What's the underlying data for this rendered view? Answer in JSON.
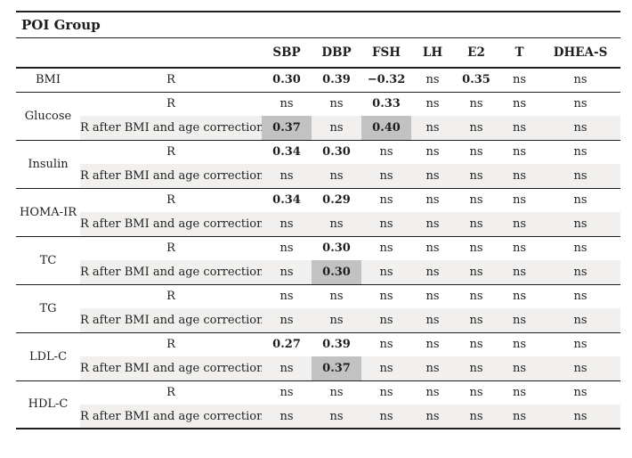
{
  "table": {
    "title": "POI Group",
    "columns": [
      "SBP",
      "DBP",
      "FSH",
      "LH",
      "E2",
      "T",
      "DHEA-S"
    ],
    "groups": [
      {
        "param": "BMI",
        "rows": [
          {
            "label": "R",
            "striped": false,
            "cells": [
              {
                "v": "0.30",
                "bold": true
              },
              {
                "v": "0.39",
                "bold": true
              },
              {
                "v": "−0.32",
                "bold": true
              },
              {
                "v": "ns"
              },
              {
                "v": "0.35",
                "bold": true
              },
              {
                "v": "ns"
              },
              {
                "v": "ns"
              }
            ]
          }
        ]
      },
      {
        "param": "Glucose",
        "rows": [
          {
            "label": "R",
            "striped": false,
            "cells": [
              {
                "v": "ns"
              },
              {
                "v": "ns"
              },
              {
                "v": "0.33",
                "bold": true
              },
              {
                "v": "ns"
              },
              {
                "v": "ns"
              },
              {
                "v": "ns"
              },
              {
                "v": "ns"
              }
            ]
          },
          {
            "label": "R after BMI and age correction",
            "striped": true,
            "cells": [
              {
                "v": "0.37",
                "bold": true,
                "highlight": true
              },
              {
                "v": "ns"
              },
              {
                "v": "0.40",
                "bold": true,
                "highlight": true
              },
              {
                "v": "ns"
              },
              {
                "v": "ns"
              },
              {
                "v": "ns"
              },
              {
                "v": "ns"
              }
            ]
          }
        ]
      },
      {
        "param": "Insulin",
        "rows": [
          {
            "label": "R",
            "striped": false,
            "cells": [
              {
                "v": "0.34",
                "bold": true
              },
              {
                "v": "0.30",
                "bold": true
              },
              {
                "v": "ns"
              },
              {
                "v": "ns"
              },
              {
                "v": "ns"
              },
              {
                "v": "ns"
              },
              {
                "v": "ns"
              }
            ]
          },
          {
            "label": "R after BMI and age correction",
            "striped": true,
            "cells": [
              {
                "v": "ns"
              },
              {
                "v": "ns"
              },
              {
                "v": "ns"
              },
              {
                "v": "ns"
              },
              {
                "v": "ns"
              },
              {
                "v": "ns"
              },
              {
                "v": "ns"
              }
            ]
          }
        ]
      },
      {
        "param": "HOMA-IR",
        "rows": [
          {
            "label": "R",
            "striped": false,
            "cells": [
              {
                "v": "0.34",
                "bold": true
              },
              {
                "v": "0.29",
                "bold": true
              },
              {
                "v": "ns"
              },
              {
                "v": "ns"
              },
              {
                "v": "ns"
              },
              {
                "v": "ns"
              },
              {
                "v": "ns"
              }
            ]
          },
          {
            "label": "R after BMI and age correction",
            "striped": true,
            "cells": [
              {
                "v": "ns"
              },
              {
                "v": "ns"
              },
              {
                "v": "ns"
              },
              {
                "v": "ns"
              },
              {
                "v": "ns"
              },
              {
                "v": "ns"
              },
              {
                "v": "ns"
              }
            ]
          }
        ]
      },
      {
        "param": "TC",
        "rows": [
          {
            "label": "R",
            "striped": false,
            "cells": [
              {
                "v": "ns"
              },
              {
                "v": "0.30",
                "bold": true
              },
              {
                "v": "ns"
              },
              {
                "v": "ns"
              },
              {
                "v": "ns"
              },
              {
                "v": "ns"
              },
              {
                "v": "ns"
              }
            ]
          },
          {
            "label": "R after BMI and age correction",
            "striped": true,
            "cells": [
              {
                "v": "ns"
              },
              {
                "v": "0.30",
                "bold": true,
                "highlight": true
              },
              {
                "v": "ns"
              },
              {
                "v": "ns"
              },
              {
                "v": "ns"
              },
              {
                "v": "ns"
              },
              {
                "v": "ns"
              }
            ]
          }
        ]
      },
      {
        "param": "TG",
        "rows": [
          {
            "label": "R",
            "striped": false,
            "cells": [
              {
                "v": "ns"
              },
              {
                "v": "ns"
              },
              {
                "v": "ns"
              },
              {
                "v": "ns"
              },
              {
                "v": "ns"
              },
              {
                "v": "ns"
              },
              {
                "v": "ns"
              }
            ]
          },
          {
            "label": "R after BMI and age correction",
            "striped": true,
            "cells": [
              {
                "v": "ns"
              },
              {
                "v": "ns"
              },
              {
                "v": "ns"
              },
              {
                "v": "ns"
              },
              {
                "v": "ns"
              },
              {
                "v": "ns"
              },
              {
                "v": "ns"
              }
            ]
          }
        ]
      },
      {
        "param": "LDL-C",
        "rows": [
          {
            "label": "R",
            "striped": false,
            "cells": [
              {
                "v": "0.27",
                "bold": true
              },
              {
                "v": "0.39",
                "bold": true
              },
              {
                "v": "ns"
              },
              {
                "v": "ns"
              },
              {
                "v": "ns"
              },
              {
                "v": "ns"
              },
              {
                "v": "ns"
              }
            ]
          },
          {
            "label": "R after BMI and age correction",
            "striped": true,
            "cells": [
              {
                "v": "ns"
              },
              {
                "v": "0.37",
                "bold": true,
                "highlight": true
              },
              {
                "v": "ns"
              },
              {
                "v": "ns"
              },
              {
                "v": "ns"
              },
              {
                "v": "ns"
              },
              {
                "v": "ns"
              }
            ]
          }
        ]
      },
      {
        "param": "HDL-C",
        "rows": [
          {
            "label": "R",
            "striped": false,
            "cells": [
              {
                "v": "ns"
              },
              {
                "v": "ns"
              },
              {
                "v": "ns"
              },
              {
                "v": "ns"
              },
              {
                "v": "ns"
              },
              {
                "v": "ns"
              },
              {
                "v": "ns"
              }
            ]
          },
          {
            "label": "R after BMI and age correction",
            "striped": true,
            "cells": [
              {
                "v": "ns"
              },
              {
                "v": "ns"
              },
              {
                "v": "ns"
              },
              {
                "v": "ns"
              },
              {
                "v": "ns"
              },
              {
                "v": "ns"
              },
              {
                "v": "ns"
              }
            ]
          }
        ]
      }
    ]
  },
  "colors": {
    "text": "#1e1e1e",
    "line": "#1f1f1f",
    "stripe_bg": "#f1f0ee",
    "highlight_bg": "#c2c2c2",
    "page_bg": "#ffffff"
  }
}
